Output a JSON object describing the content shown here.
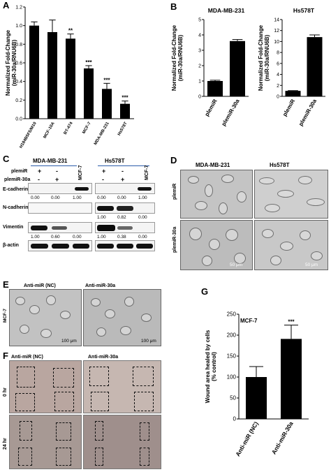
{
  "panels": {
    "A": "A",
    "B": "B",
    "C": "C",
    "D": "D",
    "E": "E",
    "F": "F",
    "G": "G"
  },
  "chart_data": [
    {
      "id": "A",
      "type": "bar",
      "categories": [
        "H184B5F5/M10",
        "MCF-10A",
        "BT-474",
        "MCF-7",
        "MDA-MB-231",
        "Hs578T"
      ],
      "values": [
        1.0,
        0.93,
        0.86,
        0.54,
        0.32,
        0.16
      ],
      "errors": [
        0.04,
        0.13,
        0.05,
        0.03,
        0.06,
        0.03
      ],
      "annotations": [
        "",
        "",
        "**",
        "***",
        "***",
        "***"
      ],
      "ylabel": "Normalized Fold-Change (miR-30a/RNU6B)",
      "ylabel_lines": [
        "Normalized Fold-Change",
        "(miR-30a/RNU6B)"
      ],
      "ylim": [
        0.0,
        1.2
      ],
      "yticks": [
        "0.0",
        "0.2",
        "0.4",
        "0.6",
        "0.8",
        "1.0",
        "1.2"
      ]
    },
    {
      "id": "B1",
      "type": "bar",
      "title": "MDA-MB-231",
      "categories": [
        "plemiR",
        "plemiR-30a"
      ],
      "values": [
        1.0,
        3.6
      ],
      "errors": [
        0.05,
        0.1
      ],
      "ylabel_lines": [
        "Normalized Fold-Change",
        "(miR-30a/RNU6B)"
      ],
      "ylim": [
        0,
        5
      ],
      "yticks": [
        "0",
        "1",
        "2",
        "3",
        "4",
        "5"
      ]
    },
    {
      "id": "B2",
      "type": "bar",
      "title": "Hs578T",
      "categories": [
        "plemiR",
        "plemiR-30a"
      ],
      "values": [
        1.0,
        10.8
      ],
      "errors": [
        0.05,
        0.4
      ],
      "ylabel_lines": [
        "Normalized Fold-Change",
        "(miR-30a/RNU6B)"
      ],
      "ylim": [
        0,
        14
      ],
      "yticks": [
        "0",
        "2",
        "4",
        "6",
        "8",
        "10",
        "12",
        "14"
      ]
    },
    {
      "id": "G",
      "type": "bar",
      "title": "MCF-7",
      "categories": [
        "Anti-miR (NC)",
        "Anti-miR-30a"
      ],
      "values": [
        100,
        191
      ],
      "errors": [
        25,
        33
      ],
      "annotations": [
        "",
        "***"
      ],
      "ylabel_lines": [
        "Wound area healed by cells",
        "(% control)"
      ],
      "ylim": [
        0,
        250
      ],
      "yticks": [
        "0",
        "50",
        "100",
        "150",
        "200",
        "250"
      ]
    }
  ],
  "panel_c": {
    "cell_lines": [
      "MDA-MB-231",
      "Hs578T"
    ],
    "mcf7": "MCF-7",
    "row_plemiR": "plemiR",
    "row_plemiR30a": "plemiR-30a",
    "plus": "+",
    "minus": "-",
    "proteins": [
      "E-cadherin",
      "N-cadherin",
      "Vimentin",
      "β-actin"
    ],
    "ecad_values": [
      "0.00",
      "0.00",
      "1.00",
      "0.00",
      "0.00",
      "1.00"
    ],
    "ncad_values": [
      "1.00",
      "0.82",
      "0.00"
    ],
    "vim_values": [
      "1.00",
      "0.60",
      "0.00",
      "1.00",
      "0.38",
      "0.00"
    ]
  },
  "panel_d": {
    "cols": [
      "MDA-MB-231",
      "Hs578T"
    ],
    "rows": [
      "plemiR",
      "plemiR-30a"
    ],
    "scale": "50 μm"
  },
  "panel_e": {
    "cols": [
      "Anti-miR (NC)",
      "Anti-miR-30a"
    ],
    "side": "MCF-7",
    "scale": "100 μm"
  },
  "panel_f": {
    "cols": [
      "Anti-miR (NC)",
      "Anti-miR-30a"
    ],
    "rows": [
      "0 hr",
      "24 hr"
    ]
  }
}
